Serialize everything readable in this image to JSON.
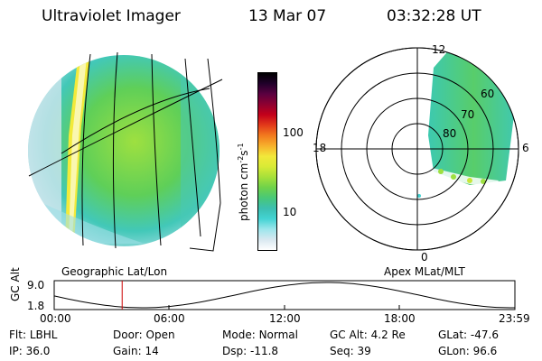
{
  "header": {
    "instrument": "Ultraviolet Imager",
    "date": "13 Mar 07",
    "time": "03:32:28 UT"
  },
  "colorbar": {
    "label_main": "photon cm",
    "label_exp1": "-2",
    "label_mid": "s",
    "label_exp2": "-1",
    "ticks": [
      "100",
      "10"
    ],
    "colors": [
      "#ffffff",
      "#d8e8f0",
      "#9ce6ec",
      "#43d3d3",
      "#3cbfb0",
      "#48c878",
      "#6fd24a",
      "#a6e03a",
      "#d8ea36",
      "#f2e83a",
      "#f7b12c",
      "#f27a1e",
      "#e23a1a",
      "#c4001a",
      "#8e0031",
      "#5a0040",
      "#20002a",
      "#000000"
    ]
  },
  "left_panel": {
    "caption": "Geographic Lat/Lon"
  },
  "right_panel": {
    "caption": "Apex MLat/MLT",
    "mlt_labels": [
      "12",
      "18",
      "6",
      "0"
    ],
    "mlat_labels": [
      "60",
      "70",
      "80"
    ]
  },
  "altitude_plot": {
    "ylabel": "GC Alt",
    "ytick_top": "9.0",
    "ytick_bottom": "1.8",
    "xticks": [
      "00:00",
      "06:00",
      "12:00",
      "18:00",
      "23:59"
    ],
    "current_time_hours": 3.54,
    "marker_color": "#cc0000"
  },
  "info_rows": [
    [
      {
        "label": "Flt:",
        "value": "LBHL"
      },
      {
        "label": "Door:",
        "value": "Open"
      },
      {
        "label": "Mode:",
        "value": "Normal"
      },
      {
        "label": "GC Alt:",
        "value": "4.2 Re"
      },
      {
        "label": "GLat:",
        "value": "-47.6"
      }
    ],
    [
      {
        "label": "IP:",
        "value": "36.0"
      },
      {
        "label": "Gain:",
        "value": "14"
      },
      {
        "label": "Dsp:",
        "value": "-11.8"
      },
      {
        "label": "Seq:",
        "value": "39"
      },
      {
        "label": "GLon:",
        "value": "96.6"
      }
    ]
  ]
}
